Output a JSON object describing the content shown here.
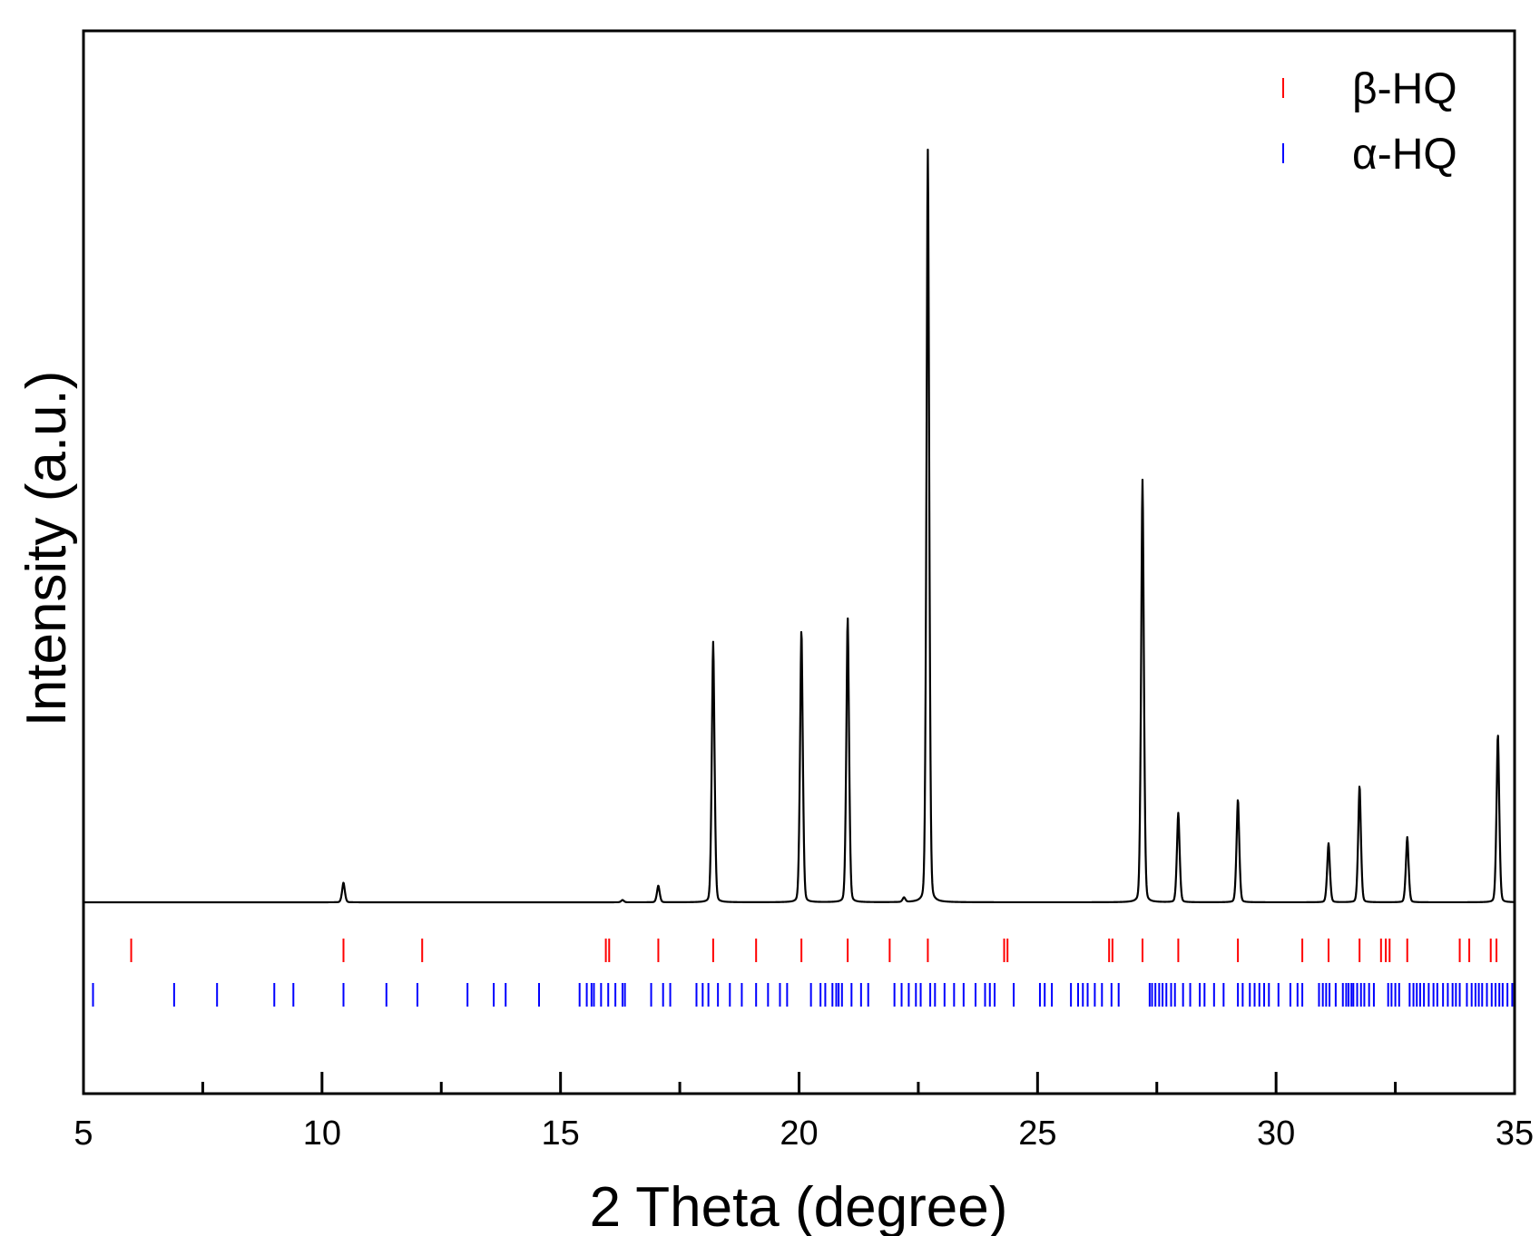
{
  "chart_data": {
    "type": "line",
    "xlabel": "2 Theta (degree)",
    "ylabel": "Intensity (a.u.)",
    "xlim": [
      5,
      35
    ],
    "ylim": [
      -10,
      60
    ],
    "grid": false,
    "legend_position": "top-right",
    "yticks_labeled": false,
    "xticks": [
      "5",
      "10",
      "15",
      "20",
      "25",
      "30",
      "35"
    ],
    "colors": {
      "pattern": "#000000",
      "beta": "#ff0000",
      "alpha": "#0000ff",
      "frame": "#000000"
    },
    "pattern": {
      "baseline": 0,
      "peaks": [
        [
          10.45,
          1.3
        ],
        [
          16.3,
          0.15
        ],
        [
          17.05,
          1.1
        ],
        [
          18.2,
          17.2
        ],
        [
          20.05,
          18.0
        ],
        [
          21.02,
          18.8
        ],
        [
          22.2,
          0.3
        ],
        [
          22.7,
          49.7
        ],
        [
          27.2,
          27.9
        ],
        [
          27.95,
          5.9
        ],
        [
          29.2,
          6.8
        ],
        [
          31.1,
          3.9
        ],
        [
          31.75,
          7.7
        ],
        [
          32.75,
          4.3
        ],
        [
          34.65,
          11.1
        ]
      ]
    },
    "series": [
      {
        "name": "β-HQ",
        "marker": "tick",
        "x": [
          6.0,
          10.45,
          12.1,
          15.95,
          16.02,
          17.05,
          18.2,
          19.1,
          20.05,
          21.02,
          21.9,
          22.7,
          24.3,
          24.37,
          26.5,
          26.57,
          27.2,
          27.95,
          29.2,
          30.55,
          31.1,
          31.75,
          32.2,
          32.3,
          32.38,
          32.75,
          33.85,
          34.05,
          34.5,
          34.62
        ]
      },
      {
        "name": "α-HQ",
        "marker": "tick",
        "x": [
          5.2,
          6.9,
          7.8,
          9.0,
          9.4,
          10.45,
          11.35,
          12.0,
          13.05,
          13.6,
          13.85,
          14.55,
          15.4,
          15.55,
          15.65,
          15.7,
          15.85,
          16.0,
          16.15,
          16.3,
          16.35,
          16.9,
          17.15,
          17.3,
          17.85,
          17.98,
          18.1,
          18.3,
          18.55,
          18.8,
          19.1,
          19.35,
          19.6,
          19.75,
          20.25,
          20.45,
          20.55,
          20.7,
          20.78,
          20.83,
          20.9,
          21.1,
          21.3,
          21.45,
          22.0,
          22.15,
          22.3,
          22.45,
          22.55,
          22.75,
          22.85,
          23.05,
          23.25,
          23.45,
          23.7,
          23.9,
          24.0,
          24.1,
          24.5,
          25.05,
          25.15,
          25.3,
          25.7,
          25.85,
          25.95,
          26.05,
          26.2,
          26.35,
          26.55,
          26.7,
          27.35,
          27.4,
          27.47,
          27.55,
          27.62,
          27.7,
          27.8,
          27.88,
          28.05,
          28.2,
          28.4,
          28.5,
          28.7,
          28.9,
          29.2,
          29.3,
          29.45,
          29.55,
          29.65,
          29.75,
          29.85,
          30.05,
          30.3,
          30.45,
          30.55,
          30.9,
          30.98,
          31.05,
          31.12,
          31.25,
          31.4,
          31.47,
          31.52,
          31.58,
          31.62,
          31.7,
          31.78,
          31.85,
          31.95,
          32.05,
          32.35,
          32.42,
          32.5,
          32.58,
          32.8,
          32.88,
          32.95,
          33.02,
          33.1,
          33.2,
          33.3,
          33.38,
          33.5,
          33.6,
          33.7,
          33.77,
          33.85,
          34.0,
          34.1,
          34.18,
          34.25,
          34.32,
          34.42,
          34.52,
          34.6,
          34.68,
          34.75,
          34.85,
          34.95
        ]
      }
    ]
  }
}
